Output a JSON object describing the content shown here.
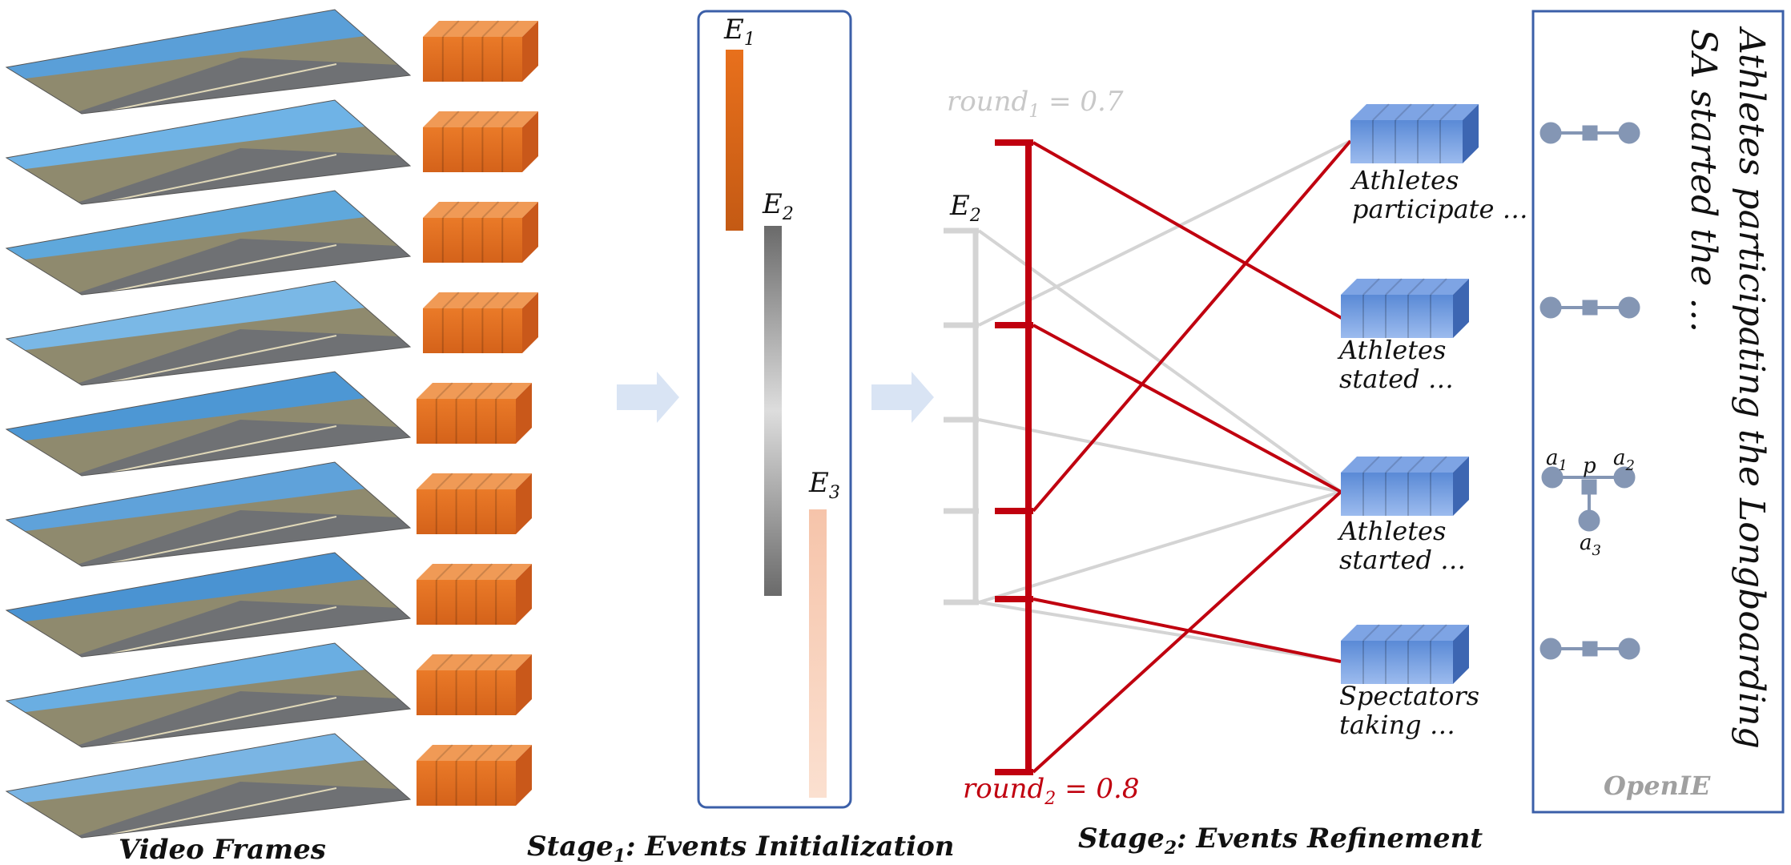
{
  "frames": {
    "count": 9,
    "label": "Video Frames",
    "sky_colors": [
      "#5a9fd8",
      "#6fb3e6",
      "#5fa8dc",
      "#7ab8e6",
      "#4d97d4",
      "#5fa2da",
      "#4a93d2",
      "#6aaee2",
      "#7ab5e4"
    ],
    "ground_color": "#8f8a6e",
    "road_color": "#6f7174"
  },
  "feature_blocks": {
    "color": "#e36f1e",
    "cells": 5
  },
  "stage1": {
    "label_main": "Stage",
    "label_sub": "1",
    "label_rest": ": Events Initialization",
    "events": [
      {
        "name": "E",
        "sub": "1",
        "color_top": "#e8701c",
        "color_bottom": "#c45a14"
      },
      {
        "name": "E",
        "sub": "2",
        "color_top": "#6a6a6a",
        "color_mid": "#d9d9d9",
        "color_bottom": "#6a6a6a"
      },
      {
        "name": "E",
        "sub": "3",
        "color_top": "#f6c8b0",
        "color_bottom": "#f9dccb"
      }
    ]
  },
  "stage2": {
    "label_main": "Stage",
    "label_sub": "2",
    "label_rest": ": Events Refinement",
    "bracket_label": {
      "name": "E",
      "sub": "2"
    },
    "round1": {
      "prefix": "round",
      "sub": "1",
      "value": " = 0.7",
      "color": "#c8c8c8"
    },
    "round2": {
      "prefix": "round",
      "sub": "2",
      "value": " = 0.8",
      "color": "#c0000f"
    },
    "captions": [
      {
        "line1": "Athletes",
        "line2": "participate …"
      },
      {
        "line1": "Athletes",
        "line2": "stated …"
      },
      {
        "line1": "Athletes",
        "line2": "started …"
      },
      {
        "line1": "Spectators",
        "line2": "taking …"
      }
    ],
    "block_color": "#4a78c8"
  },
  "openie": {
    "label": "OpenIE",
    "node_labels": {
      "a1": "a",
      "a1_sub": "1",
      "p": "p",
      "a2": "a",
      "a2_sub": "2",
      "a3": "a",
      "a3_sub": "3"
    },
    "node_color": "#8496b4"
  },
  "sentence": {
    "line1": "Athletes participating the Longboarding",
    "line2": "SA started the …"
  }
}
